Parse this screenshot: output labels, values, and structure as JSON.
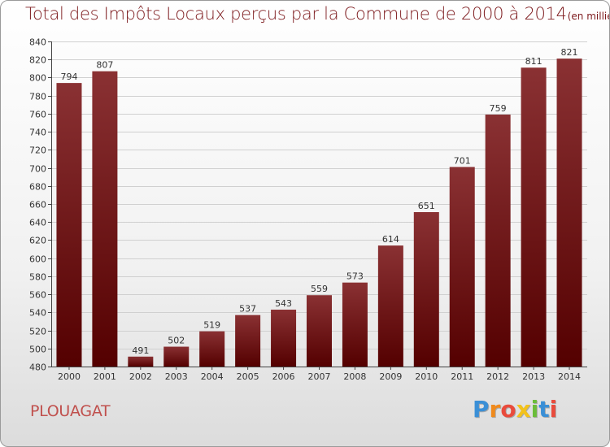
{
  "header": {
    "title": "Total des Impôts Locaux perçus par la Commune de 2000 à 2014",
    "unit": "(en milliers d'€)"
  },
  "footer": {
    "commune": "PLOUAGAT",
    "logo_text": "Proxiti"
  },
  "colors": {
    "bar_top": "#8a3133",
    "bar_bottom": "#540000",
    "title": "#7d1a1d",
    "commune": "#c0504d"
  },
  "chart_data": {
    "type": "bar",
    "title": "Total des Impôts Locaux perçus par la Commune de 2000 à 2014",
    "xlabel": "",
    "ylabel": "",
    "categories": [
      "2000",
      "2001",
      "2002",
      "2003",
      "2004",
      "2005",
      "2006",
      "2007",
      "2008",
      "2009",
      "2010",
      "2011",
      "2012",
      "2013",
      "2014"
    ],
    "values": [
      794,
      807,
      491,
      502,
      519,
      537,
      543,
      559,
      573,
      614,
      651,
      701,
      759,
      811,
      821
    ],
    "ylim": [
      480,
      840
    ],
    "yticks": [
      480,
      500,
      520,
      540,
      560,
      580,
      600,
      620,
      640,
      660,
      680,
      700,
      720,
      740,
      760,
      780,
      800,
      820,
      840
    ],
    "grid": true
  }
}
